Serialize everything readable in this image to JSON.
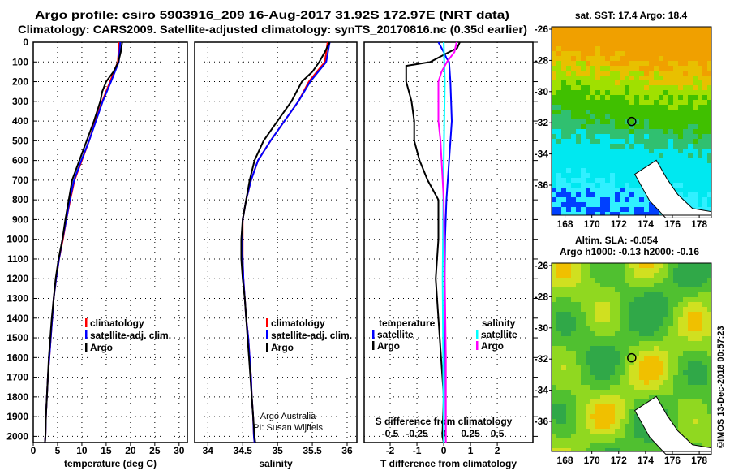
{
  "header": {
    "title_line1": "Argo profile: csiro 5903916_209 16-Aug-2017 31.92S 172.97E (NRT data)",
    "title_line2": "Climatology: CARS2009. Satellite-adjusted climatology: synTS_20170816.nc (0.35d earlier)"
  },
  "colors": {
    "argo": "#000000",
    "climatology": "#ff0000",
    "satellite": "#0000ff",
    "s_satellite": "#00ffff",
    "s_argo": "#ff00ff"
  },
  "chart_data": [
    {
      "type": "line",
      "xlabel": "temperature (deg C)",
      "ylabel": "depth",
      "xlim": [
        0,
        31.7
      ],
      "ylim": [
        2110,
        0
      ],
      "xticks": [
        "0",
        "5",
        "10",
        "15",
        "20",
        "25",
        "30"
      ],
      "xtick_values": [
        0,
        5,
        10,
        15,
        20,
        25,
        30
      ],
      "yticks": [
        "0",
        "100",
        "200",
        "300",
        "400",
        "500",
        "600",
        "700",
        "800",
        "900",
        "1000",
        "1100",
        "1200",
        "1300",
        "1400",
        "1500",
        "1600",
        "1700",
        "1800",
        "1900",
        "2000"
      ],
      "legend": [
        "climatology",
        "satellite-adj. clim.",
        "Argo"
      ],
      "series": [
        {
          "name": "climatology",
          "color": "#ff0000",
          "points": [
            [
              17.7,
              0
            ],
            [
              17.4,
              100
            ],
            [
              15.8,
              200
            ],
            [
              14.2,
              300
            ],
            [
              12.8,
              400
            ],
            [
              11.5,
              500
            ],
            [
              10,
              600
            ],
            [
              8.5,
              700
            ],
            [
              7.6,
              800
            ],
            [
              6.8,
              900
            ],
            [
              6.1,
              1000
            ],
            [
              5.3,
              1100
            ],
            [
              4.7,
              1200
            ],
            [
              4.2,
              1300
            ],
            [
              3.9,
              1400
            ],
            [
              3.6,
              1500
            ],
            [
              3.3,
              1600
            ],
            [
              3.0,
              1700
            ],
            [
              2.8,
              1800
            ],
            [
              2.6,
              1900
            ],
            [
              2.5,
              2000
            ],
            [
              2.4,
              2060
            ]
          ]
        },
        {
          "name": "satellite-adj. clim.",
          "color": "#0000ff",
          "points": [
            [
              17.9,
              0
            ],
            [
              17.6,
              100
            ],
            [
              16.0,
              200
            ],
            [
              14.3,
              300
            ],
            [
              12.9,
              400
            ],
            [
              11.5,
              500
            ],
            [
              9.9,
              600
            ],
            [
              8.4,
              700
            ],
            [
              7.5,
              800
            ],
            [
              6.8,
              900
            ],
            [
              6.0,
              1000
            ],
            [
              5.3,
              1100
            ],
            [
              4.7,
              1200
            ],
            [
              4.2,
              1300
            ],
            [
              3.9,
              1400
            ],
            [
              3.6,
              1500
            ],
            [
              3.3,
              1600
            ],
            [
              3.0,
              1700
            ],
            [
              2.8,
              1800
            ],
            [
              2.6,
              1900
            ],
            [
              2.5,
              2000
            ],
            [
              2.4,
              2060
            ]
          ]
        },
        {
          "name": "Argo",
          "color": "#000000",
          "points": [
            [
              18.3,
              0
            ],
            [
              18.0,
              50
            ],
            [
              17.5,
              100
            ],
            [
              16.5,
              150
            ],
            [
              15.0,
              200
            ],
            [
              14.2,
              250
            ],
            [
              13.8,
              300
            ],
            [
              12.5,
              400
            ],
            [
              11.0,
              500
            ],
            [
              9.5,
              600
            ],
            [
              8.0,
              700
            ],
            [
              7.3,
              800
            ],
            [
              6.6,
              900
            ],
            [
              6.0,
              1000
            ],
            [
              5.2,
              1100
            ],
            [
              4.6,
              1200
            ],
            [
              4.2,
              1300
            ],
            [
              3.8,
              1400
            ],
            [
              3.5,
              1500
            ],
            [
              3.2,
              1600
            ],
            [
              3.0,
              1700
            ],
            [
              2.8,
              1800
            ],
            [
              2.6,
              1900
            ],
            [
              2.5,
              2000
            ],
            [
              2.4,
              2060
            ]
          ]
        }
      ]
    },
    {
      "type": "line",
      "xlabel": "salinity",
      "ylabel": "depth",
      "xlim": [
        33.81,
        36.14
      ],
      "ylim": [
        2110,
        0
      ],
      "xticks": [
        "34",
        "34.5",
        "35",
        "35.5",
        "36"
      ],
      "xtick_values": [
        34,
        34.5,
        35,
        35.5,
        36
      ],
      "legend": [
        "climatology",
        "satellite-adj. clim.",
        "Argo"
      ],
      "credits": [
        "Argo Australia",
        "PI: Susan Wijffels"
      ],
      "series": [
        {
          "name": "climatology",
          "color": "#ff0000",
          "points": [
            [
              35.72,
              0
            ],
            [
              35.68,
              100
            ],
            [
              35.45,
              200
            ],
            [
              35.3,
              300
            ],
            [
              35.1,
              400
            ],
            [
              34.9,
              500
            ],
            [
              34.72,
              600
            ],
            [
              34.62,
              700
            ],
            [
              34.55,
              800
            ],
            [
              34.5,
              900
            ],
            [
              34.5,
              1000
            ],
            [
              34.5,
              1100
            ],
            [
              34.51,
              1200
            ],
            [
              34.53,
              1300
            ],
            [
              34.55,
              1400
            ],
            [
              34.58,
              1500
            ],
            [
              34.6,
              1600
            ],
            [
              34.62,
              1700
            ],
            [
              34.63,
              1800
            ],
            [
              34.65,
              1900
            ],
            [
              34.66,
              2000
            ],
            [
              34.67,
              2060
            ]
          ]
        },
        {
          "name": "satellite-adj. clim.",
          "color": "#0000ff",
          "points": [
            [
              35.75,
              0
            ],
            [
              35.7,
              100
            ],
            [
              35.47,
              200
            ],
            [
              35.3,
              300
            ],
            [
              35.1,
              400
            ],
            [
              34.9,
              500
            ],
            [
              34.72,
              600
            ],
            [
              34.62,
              700
            ],
            [
              34.55,
              800
            ],
            [
              34.5,
              900
            ],
            [
              34.49,
              1000
            ],
            [
              34.5,
              1100
            ],
            [
              34.51,
              1200
            ],
            [
              34.53,
              1300
            ],
            [
              34.55,
              1400
            ],
            [
              34.58,
              1500
            ],
            [
              34.6,
              1600
            ],
            [
              34.62,
              1700
            ],
            [
              34.63,
              1800
            ],
            [
              34.65,
              1900
            ],
            [
              34.66,
              2000
            ],
            [
              34.67,
              2060
            ]
          ]
        },
        {
          "name": "Argo",
          "color": "#000000",
          "points": [
            [
              35.75,
              0
            ],
            [
              35.68,
              50
            ],
            [
              35.6,
              100
            ],
            [
              35.5,
              150
            ],
            [
              35.35,
              200
            ],
            [
              35.2,
              300
            ],
            [
              35.0,
              400
            ],
            [
              34.8,
              500
            ],
            [
              34.67,
              600
            ],
            [
              34.6,
              700
            ],
            [
              34.55,
              800
            ],
            [
              34.5,
              900
            ],
            [
              34.48,
              1000
            ],
            [
              34.48,
              1100
            ],
            [
              34.5,
              1200
            ],
            [
              34.53,
              1300
            ],
            [
              34.55,
              1400
            ],
            [
              34.57,
              1500
            ],
            [
              34.59,
              1600
            ],
            [
              34.61,
              1700
            ],
            [
              34.63,
              1800
            ],
            [
              34.65,
              1900
            ],
            [
              34.67,
              2000
            ],
            [
              34.68,
              2060
            ]
          ]
        }
      ]
    },
    {
      "type": "line",
      "xlabel": "T difference from climatology",
      "ylabel": "depth",
      "xlim": [
        -2.97,
        3.33
      ],
      "ylim": [
        2110,
        0
      ],
      "xticks": [
        "-2",
        "-1",
        "0",
        "1",
        "2"
      ],
      "xtick_values": [
        -2,
        -1,
        0,
        1,
        2
      ],
      "secondary_xlabel": "S difference from climatology",
      "secondary_xticks": [
        "-0.5",
        "-0.25",
        "0",
        "0.25",
        "0.5"
      ],
      "secondary_xtick_values": [
        -0.5,
        -0.25,
        0,
        0.25,
        0.5
      ],
      "legend_temperature": {
        "title": "temperature",
        "items": [
          "satellite",
          "Argo"
        ]
      },
      "legend_salinity": {
        "title": "salinity",
        "items": [
          "satellite",
          "Argo"
        ]
      },
      "series": [
        {
          "name": "temperature satellite",
          "color": "#0000ff",
          "axis": "T",
          "points": [
            [
              -0.2,
              0
            ],
            [
              0,
              50
            ],
            [
              0.1,
              80
            ],
            [
              0.2,
              100
            ],
            [
              0.25,
              200
            ],
            [
              0.3,
              400
            ],
            [
              0.2,
              600
            ],
            [
              0.1,
              800
            ],
            [
              0.05,
              1000
            ],
            [
              0.02,
              1400
            ],
            [
              0,
              2060
            ]
          ]
        },
        {
          "name": "temperature Argo",
          "color": "#000000",
          "axis": "T",
          "points": [
            [
              0.6,
              0
            ],
            [
              0.5,
              30
            ],
            [
              0.2,
              50
            ],
            [
              -0.5,
              100
            ],
            [
              -1.4,
              120
            ],
            [
              -1.4,
              200
            ],
            [
              -1.2,
              300
            ],
            [
              -1.1,
              400
            ],
            [
              -1.1,
              500
            ],
            [
              -0.9,
              600
            ],
            [
              -0.6,
              700
            ],
            [
              -0.4,
              750
            ],
            [
              -0.2,
              800
            ],
            [
              -0.2,
              900
            ],
            [
              -0.2,
              1000
            ],
            [
              -0.3,
              1200
            ],
            [
              -0.2,
              1400
            ],
            [
              -0.1,
              1600
            ],
            [
              0,
              1800
            ],
            [
              -0.05,
              2000
            ],
            [
              0,
              2060
            ]
          ]
        },
        {
          "name": "salinity satellite",
          "color": "#00ffff",
          "axis": "S",
          "points": [
            [
              0,
              0
            ],
            [
              0.01,
              200
            ],
            [
              0,
              600
            ],
            [
              -0.01,
              1200
            ],
            [
              0,
              2060
            ]
          ]
        },
        {
          "name": "salinity Argo",
          "color": "#ff00ff",
          "axis": "S",
          "points": [
            [
              0.12,
              0
            ],
            [
              0.1,
              50
            ],
            [
              0.03,
              100
            ],
            [
              -0.02,
              150
            ],
            [
              -0.05,
              200
            ],
            [
              -0.05,
              400
            ],
            [
              -0.03,
              500
            ],
            [
              -0.02,
              600
            ],
            [
              0,
              800
            ],
            [
              0.01,
              1200
            ],
            [
              0.02,
              1600
            ],
            [
              0.02,
              2060
            ]
          ]
        }
      ]
    }
  ],
  "maps": {
    "sst": {
      "title": "sat. SST: 17.4 Argo: 18.4",
      "lat_ticks": [
        "-26",
        "-28",
        "-30",
        "-32",
        "-34",
        "-36"
      ],
      "lon_ticks": [
        "168",
        "170",
        "172",
        "174",
        "176",
        "178"
      ]
    },
    "sla": {
      "title_line1": "Altim. SLA: -0.054",
      "title_line2": "Argo h1000: -0.13 h2000: -0.16",
      "lat_ticks": [
        "-26",
        "-28",
        "-30",
        "-32",
        "-34",
        "-36"
      ],
      "lon_ticks": [
        "168",
        "170",
        "172",
        "174",
        "176",
        "178"
      ]
    },
    "profile_location": {
      "lat": -31.92,
      "lon": 172.97
    }
  },
  "timestamp": "©IMOS 13-Dec-2018 00:57:23"
}
